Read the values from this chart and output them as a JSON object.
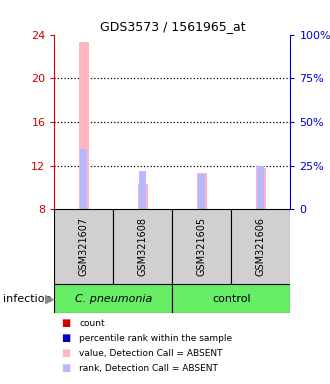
{
  "title": "GDS3573 / 1561965_at",
  "samples": [
    "GSM321607",
    "GSM321608",
    "GSM321605",
    "GSM321606"
  ],
  "ylim_left": [
    8,
    24
  ],
  "ylim_right": [
    0,
    100
  ],
  "yticks_left": [
    8,
    12,
    16,
    20,
    24
  ],
  "yticks_right": [
    0,
    25,
    50,
    75,
    100
  ],
  "bar_values": [
    23.3,
    10.3,
    11.3,
    11.8
  ],
  "bar_base": 8,
  "rank_values": [
    13.5,
    11.5,
    11.2,
    12.0
  ],
  "rank_base": 8,
  "bar_color_absent": "#FFB6C1",
  "rank_color_absent": "#B8B8FF",
  "left_axis_color": "#CC0000",
  "right_axis_color": "#0000CC",
  "grid_color": "#000000",
  "infection_label": "infection",
  "group1_name": "C. pneumonia",
  "group2_name": "control",
  "green_color": "#66EE66",
  "sample_box_color": "#D0D0D0",
  "legend_items": [
    {
      "color": "#CC0000",
      "label": "count"
    },
    {
      "color": "#0000CC",
      "label": "percentile rank within the sample"
    },
    {
      "color": "#FFB6C1",
      "label": "value, Detection Call = ABSENT"
    },
    {
      "color": "#B8B8FF",
      "label": "rank, Detection Call = ABSENT"
    }
  ],
  "pink_bar_width": 0.18,
  "lavender_bar_width": 0.12,
  "background_color": "#FFFFFF"
}
